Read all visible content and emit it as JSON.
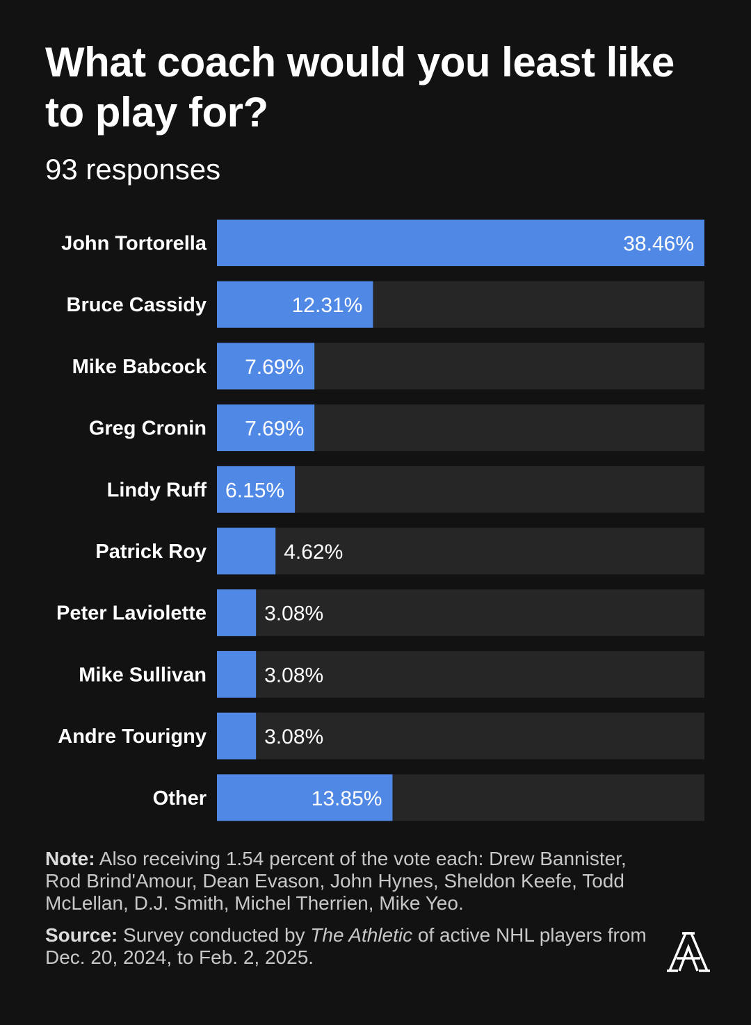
{
  "title": "What coach would you least like to play for?",
  "subtitle": "93 responses",
  "chart_data": {
    "type": "bar",
    "orientation": "horizontal",
    "categories": [
      "John Tortorella",
      "Bruce Cassidy",
      "Mike Babcock",
      "Greg Cronin",
      "Lindy Ruff",
      "Patrick Roy",
      "Peter Laviolette",
      "Mike Sullivan",
      "Andre Tourigny",
      "Other"
    ],
    "values": [
      38.46,
      12.31,
      7.69,
      7.69,
      6.15,
      4.62,
      3.08,
      3.08,
      3.08,
      13.85
    ],
    "value_labels": [
      "38.46%",
      "12.31%",
      "7.69%",
      "7.69%",
      "6.15%",
      "4.62%",
      "3.08%",
      "3.08%",
      "3.08%",
      "13.85%"
    ],
    "xlim": [
      0,
      38.46
    ],
    "grid": false,
    "colors": {
      "bar": "#5088e6",
      "track": "#262626",
      "background": "#121212"
    }
  },
  "note": {
    "label": "Note:",
    "text": " Also receiving 1.54 percent of the vote each: Drew Bannister, Rod Brind'Amour, Dean Evason, John Hynes, Sheldon Keefe, Todd McLellan, D.J. Smith, Michel Therrien, Mike Yeo."
  },
  "source": {
    "label": "Source:",
    "text_before": " Survey conducted by ",
    "publication": "The Athletic",
    "text_after": " of active NHL players from Dec. 20, 2024, to Feb. 2, 2025."
  }
}
